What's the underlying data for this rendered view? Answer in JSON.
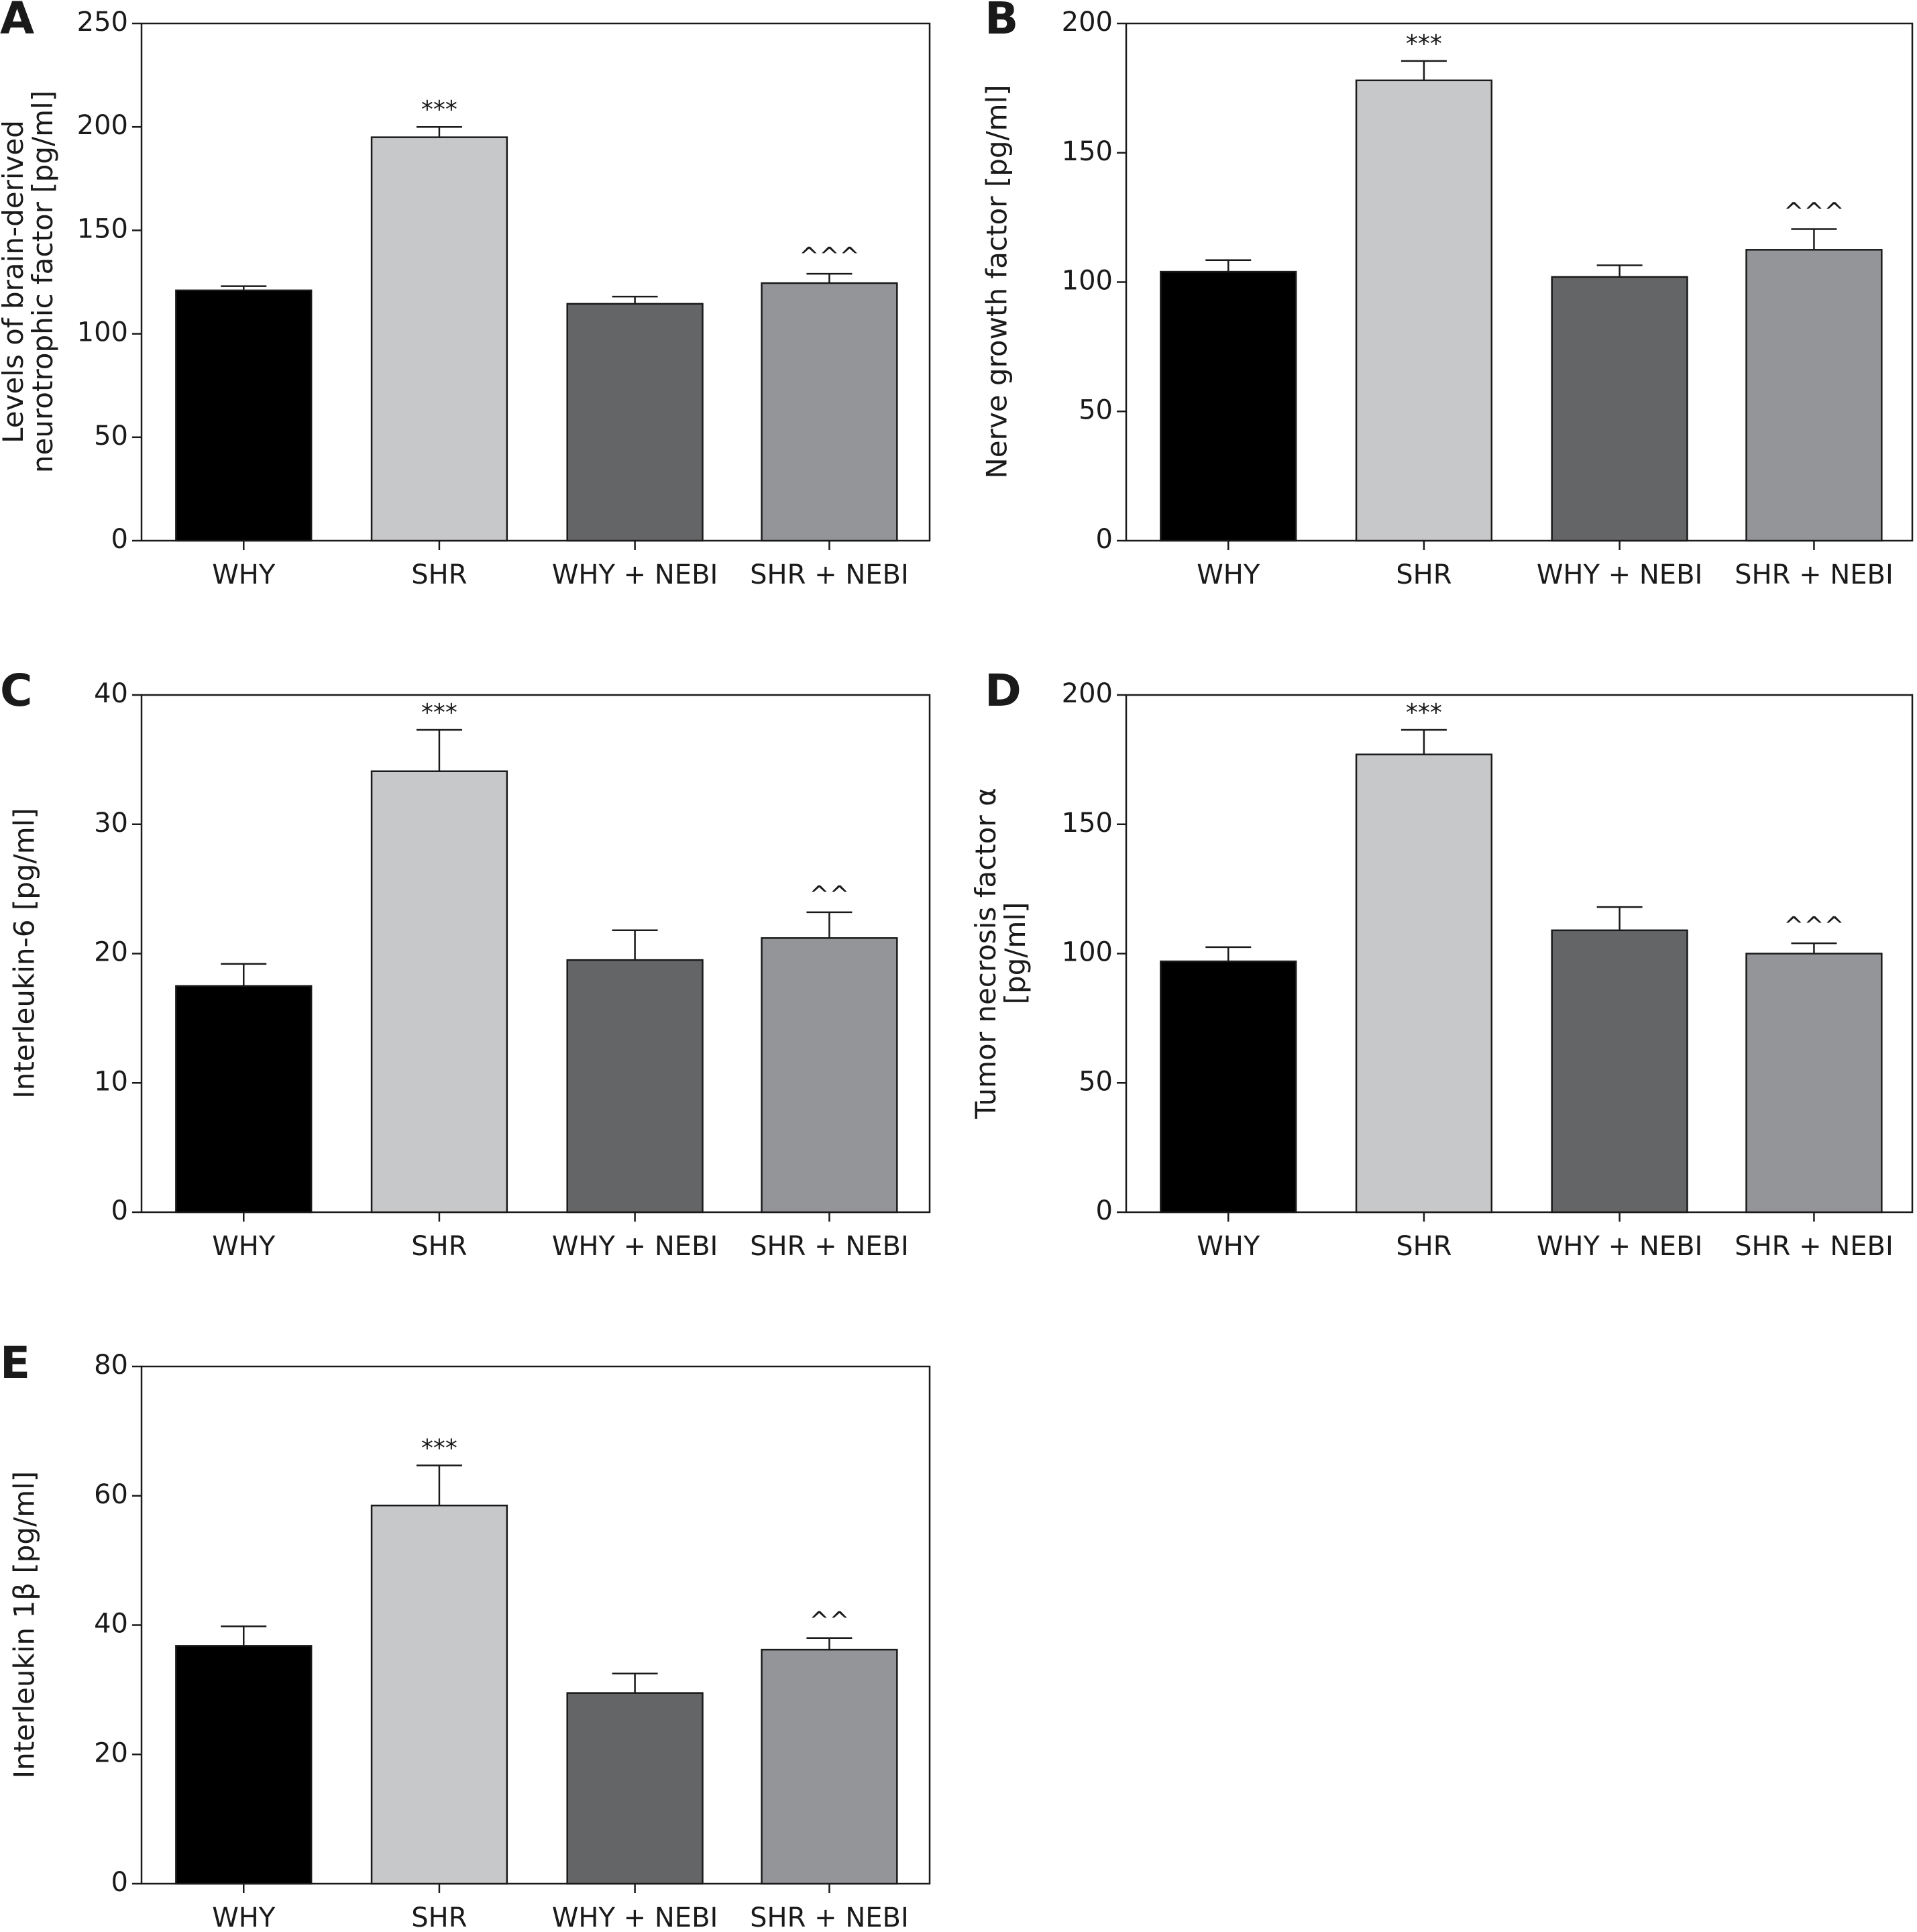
{
  "colors": {
    "WHY": "#000000",
    "SHR": "#c7c8ca",
    "WHY + NEBI": "#646567",
    "SHR + NEBI": "#939598",
    "axis": "#1a1a1a"
  },
  "chart_data": [
    {
      "panel": "A",
      "type": "bar",
      "ylabel": [
        "Levels of brain-derived",
        "neurotrophic factor [pg/ml]"
      ],
      "ylim": [
        0,
        250
      ],
      "yticks": [
        0,
        50,
        100,
        150,
        200,
        250
      ],
      "categories": [
        "WHY",
        "SHR",
        "WHY + NEBI",
        "SHR + NEBI"
      ],
      "values": [
        121,
        195,
        114.5,
        124.5
      ],
      "errors": [
        2,
        5,
        3.5,
        4.5
      ],
      "significance": [
        "",
        "***",
        "",
        "^^^"
      ]
    },
    {
      "panel": "B",
      "type": "bar",
      "ylabel": [
        "Nerve growth factor [pg/ml]"
      ],
      "ylim": [
        0,
        200
      ],
      "yticks": [
        0,
        50,
        100,
        150,
        200
      ],
      "categories": [
        "WHY",
        "SHR",
        "WHY + NEBI",
        "SHR + NEBI"
      ],
      "values": [
        104,
        178,
        102,
        112.5
      ],
      "errors": [
        4.5,
        7.5,
        4.5,
        8
      ],
      "significance": [
        "",
        "***",
        "",
        "^^^"
      ]
    },
    {
      "panel": "C",
      "type": "bar",
      "ylabel": [
        "Interleukin-6 [pg/ml]"
      ],
      "ylim": [
        0,
        40
      ],
      "yticks": [
        0,
        10,
        20,
        30,
        40
      ],
      "categories": [
        "WHY",
        "SHR",
        "WHY + NEBI",
        "SHR + NEBI"
      ],
      "values": [
        17.5,
        34.1,
        19.5,
        21.2
      ],
      "errors": [
        1.7,
        3.2,
        2.3,
        2
      ],
      "significance": [
        "",
        "***",
        "",
        "^^"
      ]
    },
    {
      "panel": "D",
      "type": "bar",
      "ylabel": [
        "Tumor necrosis factor α",
        "[pg/ml]"
      ],
      "ylim": [
        0,
        200
      ],
      "yticks": [
        0,
        50,
        100,
        150,
        200
      ],
      "categories": [
        "WHY",
        "SHR",
        "WHY + NEBI",
        "SHR + NEBI"
      ],
      "values": [
        97,
        177,
        109,
        100
      ],
      "errors": [
        5.5,
        9.5,
        9,
        4
      ],
      "significance": [
        "",
        "***",
        "",
        "^^^"
      ]
    },
    {
      "panel": "E",
      "type": "bar",
      "ylabel": [
        "Interleukin 1β [pg/ml]"
      ],
      "ylim": [
        0,
        80
      ],
      "yticks": [
        0,
        20,
        40,
        60,
        80
      ],
      "categories": [
        "WHY",
        "SHR",
        "WHY + NEBI",
        "SHR + NEBI"
      ],
      "values": [
        36.8,
        58.5,
        29.5,
        36.2
      ],
      "errors": [
        3,
        6.2,
        3,
        1.8
      ],
      "significance": [
        "",
        "***",
        "",
        "^^"
      ]
    }
  ]
}
